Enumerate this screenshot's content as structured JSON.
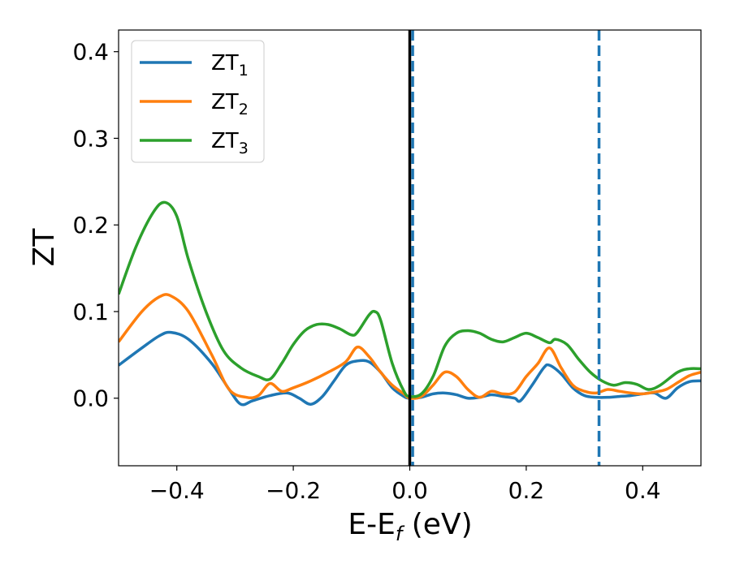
{
  "chart_data": {
    "type": "line",
    "xlabel": "E-E",
    "xlabel_sub": "f",
    "xlabel_unit": " (eV)",
    "ylabel": "ZT",
    "xlim": [
      -0.5,
      0.5
    ],
    "ylim": [
      -0.078,
      0.425
    ],
    "xticks": [
      -0.4,
      -0.2,
      0.0,
      0.2,
      0.4
    ],
    "xtick_labels": [
      "−0.4",
      "−0.2",
      "0.0",
      "0.2",
      "0.4"
    ],
    "yticks": [
      0.0,
      0.1,
      0.2,
      0.3,
      0.4
    ],
    "ytick_labels": [
      "0.0",
      "0.1",
      "0.2",
      "0.3",
      "0.4"
    ],
    "grid": false,
    "legend_position": "top-left",
    "vlines": [
      {
        "x": 0.0,
        "style": "solid",
        "color": "#000000"
      },
      {
        "x": 0.005,
        "style": "dashed",
        "color": "#1f77b4"
      },
      {
        "x": 0.325,
        "style": "dashed",
        "color": "#1f77b4"
      }
    ],
    "series": [
      {
        "name": "ZT",
        "name_sub": "1",
        "color": "#1f77b4",
        "x": [
          -0.5,
          -0.46,
          -0.43,
          -0.41,
          -0.38,
          -0.34,
          -0.31,
          -0.29,
          -0.27,
          -0.24,
          -0.21,
          -0.19,
          -0.17,
          -0.15,
          -0.13,
          -0.11,
          -0.09,
          -0.07,
          -0.05,
          -0.03,
          -0.01,
          0.0,
          0.02,
          0.04,
          0.06,
          0.08,
          0.1,
          0.12,
          0.14,
          0.16,
          0.18,
          0.19,
          0.21,
          0.23,
          0.24,
          0.26,
          0.28,
          0.3,
          0.32,
          0.34,
          0.36,
          0.38,
          0.4,
          0.42,
          0.44,
          0.46,
          0.48,
          0.5
        ],
        "y": [
          0.038,
          0.058,
          0.072,
          0.076,
          0.068,
          0.04,
          0.01,
          -0.007,
          -0.003,
          0.003,
          0.006,
          0.0,
          -0.007,
          0.002,
          0.02,
          0.038,
          0.043,
          0.042,
          0.03,
          0.012,
          0.002,
          0.0,
          0.001,
          0.005,
          0.006,
          0.004,
          0.0,
          0.001,
          0.004,
          0.002,
          0.0,
          -0.003,
          0.015,
          0.035,
          0.038,
          0.028,
          0.012,
          0.003,
          0.001,
          0.001,
          0.002,
          0.003,
          0.005,
          0.006,
          0.0,
          0.012,
          0.019,
          0.02
        ]
      },
      {
        "name": "ZT",
        "name_sub": "2",
        "color": "#ff7f0e",
        "x": [
          -0.5,
          -0.46,
          -0.43,
          -0.41,
          -0.38,
          -0.34,
          -0.31,
          -0.28,
          -0.26,
          -0.24,
          -0.22,
          -0.2,
          -0.17,
          -0.14,
          -0.11,
          -0.09,
          -0.07,
          -0.05,
          -0.03,
          -0.01,
          0.0,
          0.02,
          0.04,
          0.06,
          0.08,
          0.1,
          0.12,
          0.14,
          0.16,
          0.18,
          0.2,
          0.22,
          0.24,
          0.26,
          0.28,
          0.3,
          0.32,
          0.34,
          0.36,
          0.38,
          0.4,
          0.42,
          0.44,
          0.46,
          0.48,
          0.5
        ],
        "y": [
          0.065,
          0.1,
          0.117,
          0.118,
          0.1,
          0.05,
          0.01,
          0.001,
          0.003,
          0.017,
          0.008,
          0.012,
          0.02,
          0.03,
          0.042,
          0.059,
          0.048,
          0.03,
          0.015,
          0.005,
          0.0,
          0.002,
          0.015,
          0.03,
          0.025,
          0.01,
          0.001,
          0.008,
          0.005,
          0.007,
          0.025,
          0.04,
          0.058,
          0.035,
          0.015,
          0.008,
          0.006,
          0.01,
          0.008,
          0.006,
          0.005,
          0.007,
          0.01,
          0.018,
          0.026,
          0.03
        ]
      },
      {
        "name": "ZT",
        "name_sub": "3",
        "color": "#2ca02c",
        "x": [
          -0.5,
          -0.47,
          -0.44,
          -0.42,
          -0.4,
          -0.38,
          -0.35,
          -0.32,
          -0.29,
          -0.26,
          -0.24,
          -0.22,
          -0.2,
          -0.18,
          -0.16,
          -0.14,
          -0.12,
          -0.1,
          -0.09,
          -0.07,
          -0.06,
          -0.05,
          -0.03,
          -0.01,
          0.0,
          0.02,
          0.04,
          0.06,
          0.08,
          0.1,
          0.12,
          0.14,
          0.16,
          0.18,
          0.2,
          0.22,
          0.24,
          0.25,
          0.27,
          0.29,
          0.31,
          0.33,
          0.35,
          0.37,
          0.39,
          0.41,
          0.43,
          0.46,
          0.48,
          0.5
        ],
        "y": [
          0.12,
          0.175,
          0.215,
          0.226,
          0.21,
          0.16,
          0.1,
          0.055,
          0.035,
          0.025,
          0.022,
          0.04,
          0.062,
          0.078,
          0.085,
          0.085,
          0.08,
          0.073,
          0.076,
          0.096,
          0.1,
          0.09,
          0.04,
          0.008,
          0.002,
          0.005,
          0.025,
          0.06,
          0.075,
          0.078,
          0.075,
          0.068,
          0.065,
          0.07,
          0.075,
          0.07,
          0.064,
          0.068,
          0.062,
          0.045,
          0.03,
          0.02,
          0.015,
          0.018,
          0.016,
          0.01,
          0.015,
          0.03,
          0.034,
          0.034
        ]
      }
    ]
  }
}
